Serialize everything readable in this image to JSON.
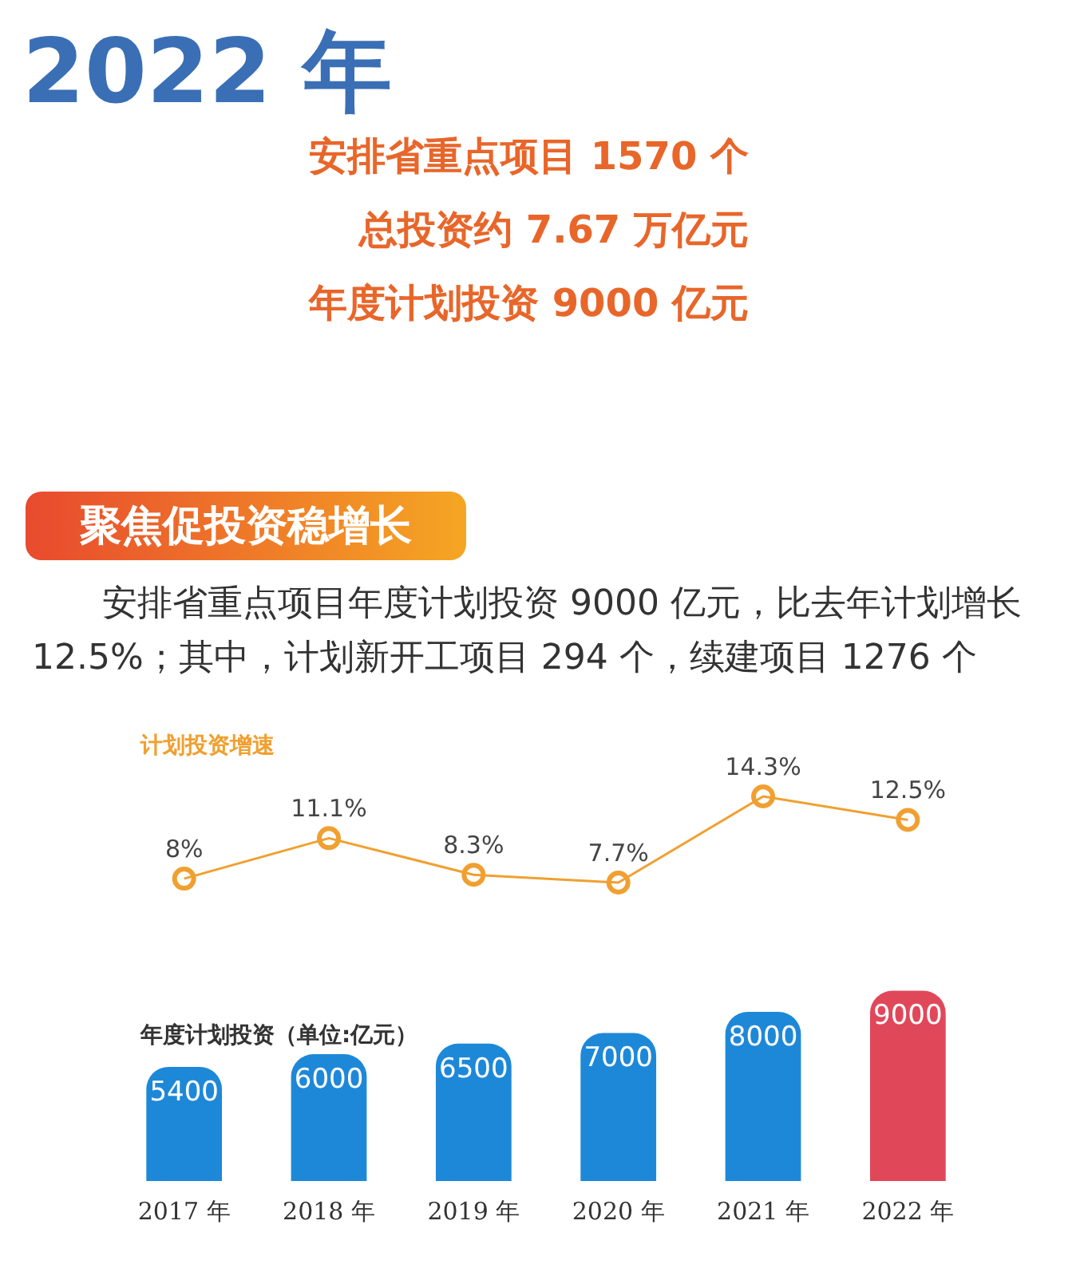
{
  "chart_data": [
    {
      "type": "line",
      "title": "2022 年",
      "subtitle": "聚焦促投资稳增长",
      "annotations": [
        "安排省重点项目 1570 个",
        "总投资约 7.67 万亿元",
        "年度计划投资 9000 亿元",
        "安排省重点项目年度计划投资 9000 亿元，比去年计划增长 12.5%；其中，计划新开工项目 294 个，续建项目 1276 个"
      ],
      "categories": [
        null,
        null,
        null,
        null,
        null,
        null
      ],
      "series": [
        {
          "name": "计划投资增速",
          "color": "#f0a030",
          "values": [
            8,
            11.1,
            8.3,
            7.7,
            14.3,
            12.5
          ],
          "value_labels": [
            "8%",
            "11.1%",
            "8.3%",
            "7.7%",
            "14.3%",
            "12.5%"
          ]
        }
      ],
      "marker": "circle"
    },
    {
      "type": "bar",
      "categories": [
        "2017 年",
        "2018 年",
        "2019 年",
        "2020 年",
        "2021 年",
        "2022 年"
      ],
      "series": [
        {
          "name": "年度计划投资（单位:亿元）",
          "colors": [
            "#1e88d8",
            "#1e88d8",
            "#1e88d8",
            "#1e88d8",
            "#1e88d8",
            "#e0485a"
          ],
          "values": [
            5400,
            6000,
            6500,
            7000,
            8000,
            9000
          ],
          "value_labels": [
            "5400",
            "6000",
            "6500",
            "7000",
            "8000",
            "9000"
          ]
        }
      ]
    }
  ]
}
